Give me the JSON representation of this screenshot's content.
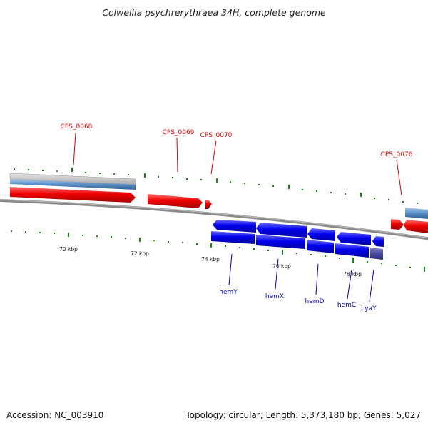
{
  "title": "Colwellia psychrerythraea 34H, complete genome",
  "footer": {
    "accession": "Accession: NC_003910",
    "summary": "Topology: circular; Length: 5,373,180 bp; Genes: 5,027"
  },
  "colors": {
    "forward_gene": "#ee0000",
    "reverse_gene": "#0000ee",
    "forward_label": "#dd0000",
    "reverse_label": "#0000aa",
    "tick_mark": "#118811",
    "rna_feature": "#5a8ec6",
    "highlight_gene": "#4a4aa0",
    "backbone": "#8a8a8a"
  },
  "scale_ticks": [
    "70 kbp",
    "72 kbp",
    "74 kbp",
    "76 kbp",
    "78 kbp"
  ],
  "forward_labels": [
    "CPS_0068",
    "CPS_0069",
    "CPS_0070",
    "CPS_0076"
  ],
  "reverse_labels": [
    "hemY",
    "hemX",
    "hemD",
    "hemC",
    "cyaY"
  ]
}
